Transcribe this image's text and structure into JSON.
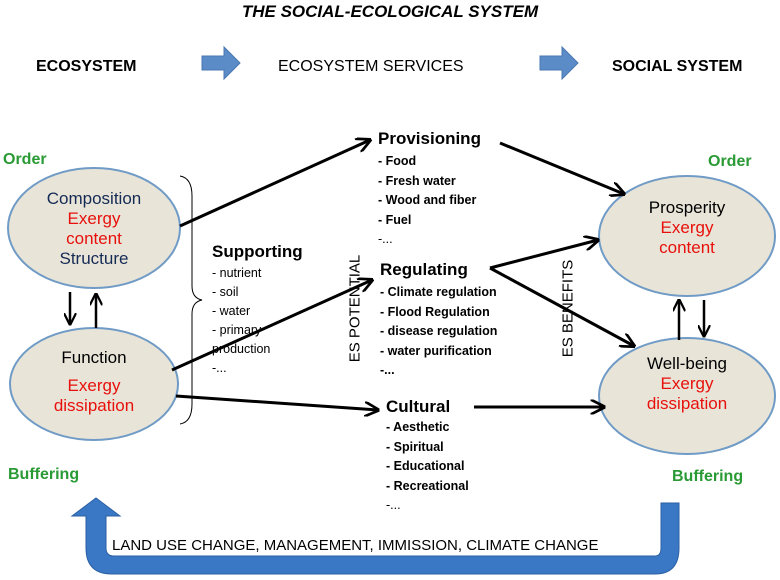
{
  "title": "THE SOCIAL-ECOLOGICAL SYSTEM",
  "header": {
    "ecosystem": "ECOSYSTEM",
    "services": "ECOSYSTEM SERVICES",
    "social": "SOCIAL SYSTEM"
  },
  "colors": {
    "ellipse_fill": "#e8e5d8",
    "ellipse_stroke": "#6f9bc6",
    "header_arrow": "#5b8cc8",
    "green": "#2a9a35",
    "red": "#e8100c",
    "navy": "#152a55"
  },
  "left": {
    "order": "Order",
    "buffering": "Buffering",
    "composition": {
      "line1": "Composition",
      "line2": "Exergy",
      "line3": "content",
      "line4": "Structure"
    },
    "function": {
      "line1": "Function",
      "line2": "Exergy",
      "line3": "dissipation"
    }
  },
  "right": {
    "order": "Order",
    "buffering": "Buffering",
    "prosperity": {
      "line1": "Prosperity",
      "line2": "Exergy",
      "line3": "content"
    },
    "wellbeing": {
      "line1": "Well-being",
      "line2": "Exergy",
      "line3": "dissipation"
    }
  },
  "supporting": {
    "title": "Supporting",
    "items": [
      "- nutrient",
      "- soil",
      "- water",
      "- primary",
      "production",
      "-..."
    ]
  },
  "provisioning": {
    "title": "Provisioning",
    "items": [
      "- Food",
      "- Fresh water",
      "- Wood and fiber",
      "- Fuel",
      "-..."
    ]
  },
  "regulating": {
    "title": "Regulating",
    "items": [
      "- Climate regulation",
      "- Flood Regulation",
      "- disease regulation",
      "- water purification",
      "-..."
    ]
  },
  "cultural": {
    "title": "Cultural",
    "items": [
      "- Aesthetic",
      "- Spiritual",
      "- Educational",
      "- Recreational",
      "-..."
    ]
  },
  "es_potential": "ES POTENTIAL",
  "es_benefits": "ES BENEFITS",
  "bottom_text": "LAND USE CHANGE, MANAGEMENT, IMMISSION, CLIMATE CHANGE"
}
